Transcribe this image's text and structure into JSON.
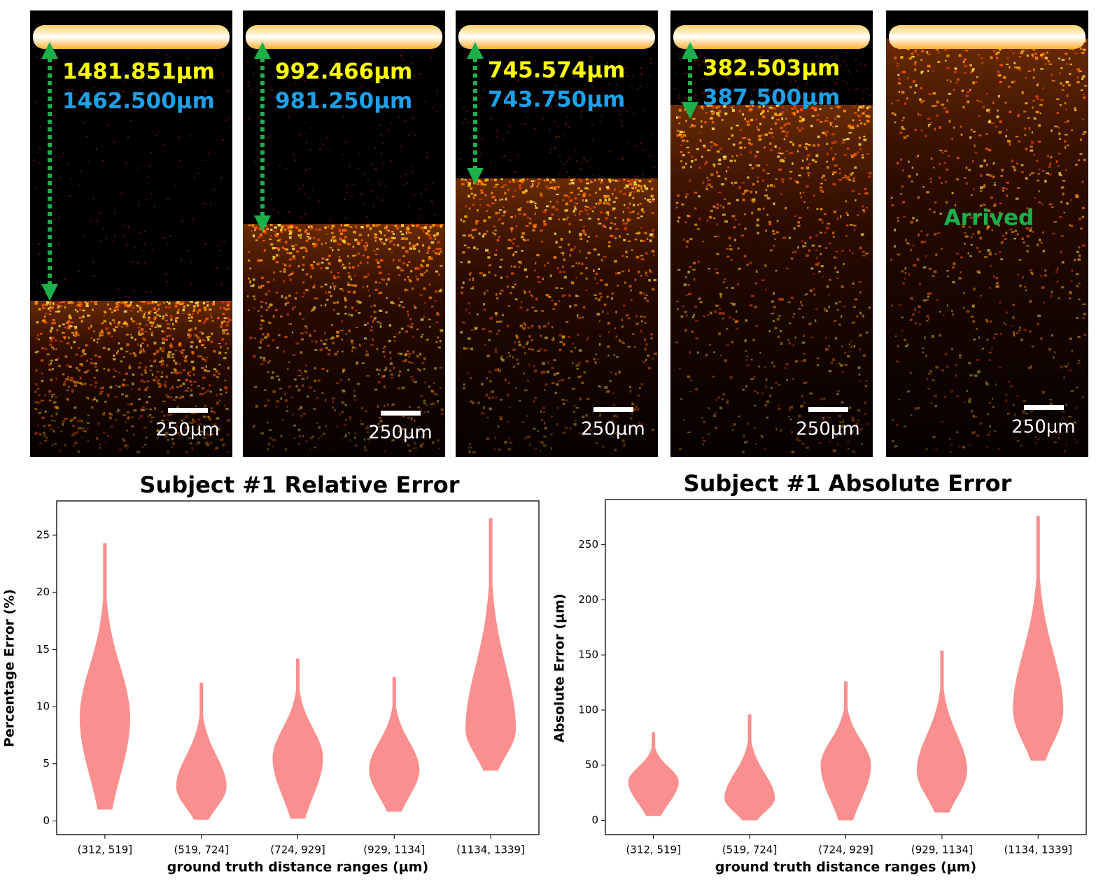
{
  "panels": [
    {
      "measured": "1481.851µm",
      "ground_truth": "1462.500µm",
      "scale_bar": "250µm"
    },
    {
      "measured": "992.466µm",
      "ground_truth": "981.250µm",
      "scale_bar": "250µm"
    },
    {
      "measured": "745.574µm",
      "ground_truth": "743.750µm",
      "scale_bar": "250µm"
    },
    {
      "measured": "382.503µm",
      "ground_truth": "387.500µm",
      "scale_bar": "250µm"
    },
    {
      "label": "Arrived",
      "scale_bar": "250µm"
    }
  ],
  "chart_data": [
    {
      "type": "violin",
      "title": "Subject #1 Relative Error",
      "x_label": "ground truth distance ranges (µm)",
      "y_label": "Percentage Error (%)",
      "categories": [
        "(312, 519]",
        "(519, 724]",
        "(724, 929]",
        "(929, 1134]",
        "(1134, 1339]"
      ],
      "color": "#fa8f8f",
      "values": [
        {
          "min": 1,
          "peak": 9,
          "max": 24.3
        },
        {
          "min": 0.1,
          "peak": 3,
          "max": 12.1
        },
        {
          "min": 0.2,
          "peak": 5.5,
          "max": 14.2
        },
        {
          "min": 0.8,
          "peak": 4.5,
          "max": 12.6
        },
        {
          "min": 4.4,
          "peak": 8,
          "max": 26.5
        }
      ],
      "ylim": [
        -1.2,
        28
      ],
      "yticks": [
        0,
        5,
        10,
        15,
        20,
        25
      ]
    },
    {
      "type": "violin",
      "title": "Subject #1 Absolute Error",
      "x_label": "ground truth distance ranges (µm)",
      "y_label": "Absolute Error (µm)",
      "categories": [
        "(312, 519]",
        "(519, 724]",
        "(724, 929]",
        "(929, 1134]",
        "(1134, 1339]"
      ],
      "color": "#fa8f8f",
      "values": [
        {
          "min": 4,
          "peak": 35,
          "max": 80
        },
        {
          "min": 0,
          "peak": 20,
          "max": 96
        },
        {
          "min": 0,
          "peak": 50,
          "max": 126
        },
        {
          "min": 7,
          "peak": 45,
          "max": 154
        },
        {
          "min": 54,
          "peak": 100,
          "max": 276
        }
      ],
      "ylim": [
        -13,
        291
      ],
      "yticks": [
        0,
        50,
        100,
        150,
        200,
        250
      ]
    }
  ]
}
